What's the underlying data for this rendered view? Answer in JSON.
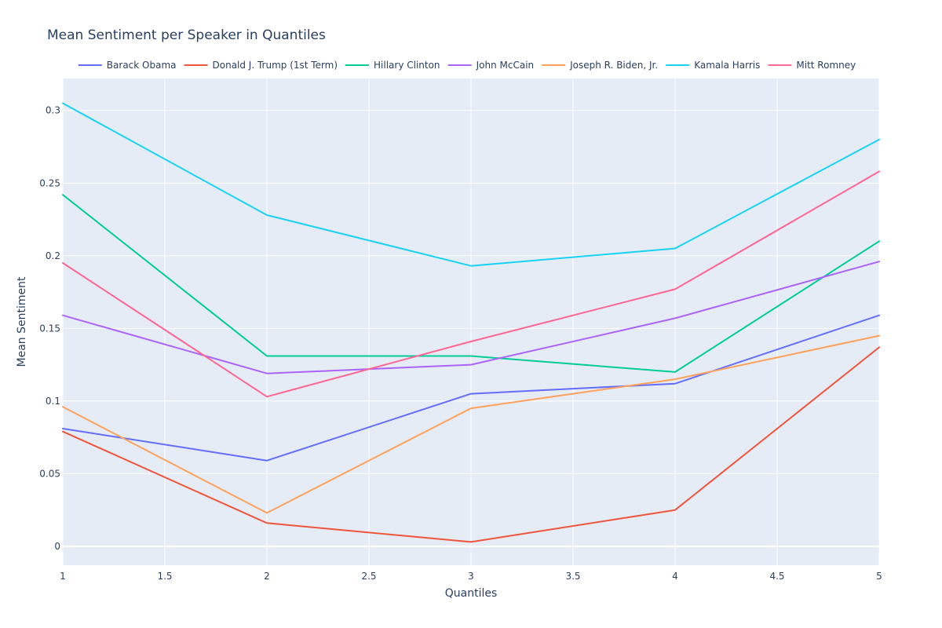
{
  "chart_data": {
    "type": "line",
    "title": "Mean Sentiment per Speaker in Quantiles",
    "xlabel": "Quantiles",
    "ylabel": "Mean Sentiment",
    "xlim": [
      1,
      5
    ],
    "ylim": [
      -0.013,
      0.322
    ],
    "x_ticks": [
      "1",
      "1.5",
      "2",
      "2.5",
      "3",
      "3.5",
      "4",
      "4.5",
      "5"
    ],
    "y_ticks": [
      "0",
      "0.05",
      "0.1",
      "0.15",
      "0.2",
      "0.25",
      "0.3"
    ],
    "grid": true,
    "legend_position": "top",
    "plot_bg": "#e5ecf6",
    "x": [
      1,
      2,
      3,
      4,
      5
    ],
    "series": [
      {
        "name": "Barack Obama",
        "color": "#636efa",
        "values": [
          0.081,
          0.059,
          0.105,
          0.112,
          0.159
        ]
      },
      {
        "name": "Donald J. Trump (1st Term)",
        "color": "#ef553b",
        "values": [
          0.079,
          0.016,
          0.003,
          0.025,
          0.137
        ]
      },
      {
        "name": "Hillary Clinton",
        "color": "#00cc96",
        "values": [
          0.242,
          0.131,
          0.131,
          0.12,
          0.21
        ]
      },
      {
        "name": "John McCain",
        "color": "#ab63fa",
        "values": [
          0.159,
          0.119,
          0.125,
          0.157,
          0.196
        ]
      },
      {
        "name": "Joseph R. Biden, Jr.",
        "color": "#ffa15a",
        "values": [
          0.096,
          0.023,
          0.095,
          0.115,
          0.145
        ]
      },
      {
        "name": "Kamala Harris",
        "color": "#19d3f3",
        "values": [
          0.305,
          0.228,
          0.193,
          0.205,
          0.28
        ]
      },
      {
        "name": "Mitt Romney",
        "color": "#ff6692",
        "values": [
          0.195,
          0.103,
          0.141,
          0.177,
          0.258
        ]
      }
    ]
  }
}
